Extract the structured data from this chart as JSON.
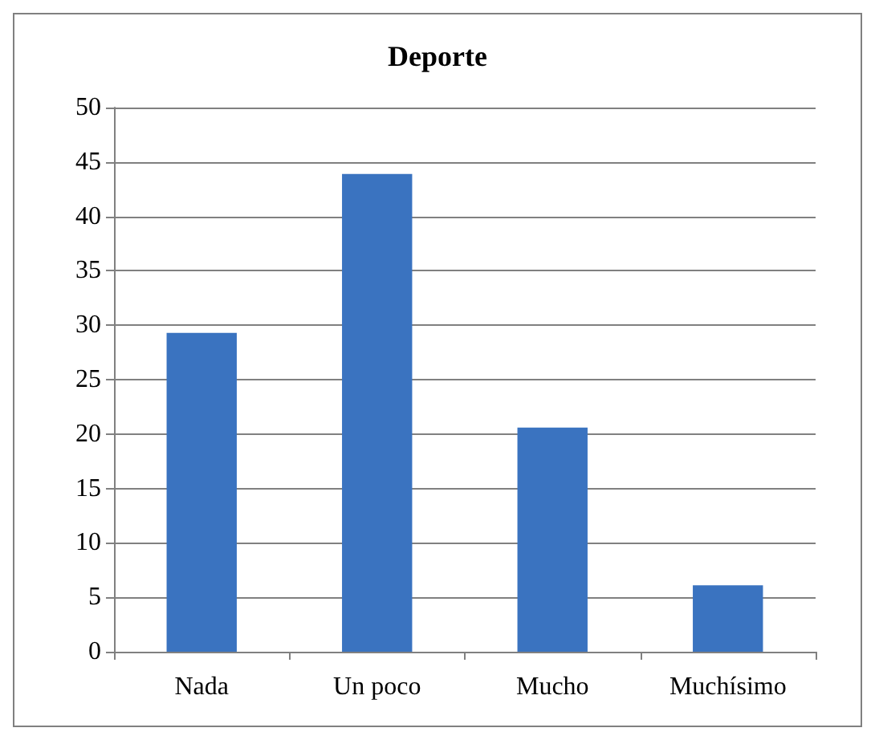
{
  "chart_data": {
    "type": "bar",
    "title": "Deporte",
    "categories": [
      "Nada",
      "Un poco",
      "Mucho",
      "Muchísimo"
    ],
    "values": [
      29.3,
      43.9,
      20.6,
      6.1
    ],
    "color": "#3a73c0",
    "ylim": [
      0,
      50
    ],
    "yticks": [
      0,
      5,
      10,
      15,
      20,
      25,
      30,
      35,
      40,
      45,
      50
    ],
    "grid": "y"
  }
}
